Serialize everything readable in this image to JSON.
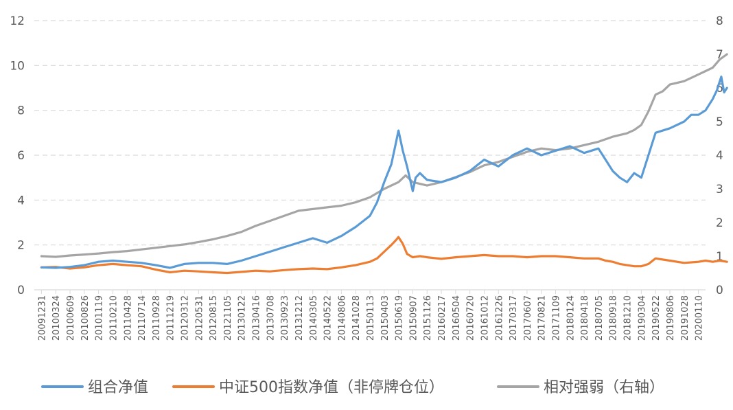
{
  "chart_data": {
    "type": "line",
    "title": "",
    "xlabel": "",
    "ylabel": "",
    "ylim_left": [
      0,
      12
    ],
    "yticks_left": [
      0,
      2,
      4,
      6,
      8,
      10,
      12
    ],
    "ylim_right": [
      0,
      8
    ],
    "yticks_right": [
      0,
      1,
      2,
      3,
      4,
      5,
      6,
      7,
      8
    ],
    "grid": "horizontal dashed",
    "legend": "bottom",
    "x_tick_labels": [
      "20091231",
      "20100324",
      "20100609",
      "20100826",
      "20101119",
      "20110210",
      "20110428",
      "20110714",
      "20110928",
      "20111219",
      "20120312",
      "20120531",
      "20120815",
      "20121105",
      "20130122",
      "20130416",
      "20130708",
      "20130923",
      "20131212",
      "20140305",
      "20140522",
      "20140806",
      "20141028",
      "20150113",
      "20150403",
      "20150619",
      "20150907",
      "20151126",
      "20160217",
      "20160504",
      "20160720",
      "20161012",
      "20161226",
      "20170317",
      "20170607",
      "20170821",
      "20171109",
      "20180124",
      "20180418",
      "20180705",
      "20180918",
      "20181210",
      "20190304",
      "20190522",
      "20190806",
      "20191028",
      "20200110"
    ],
    "series": [
      {
        "name": "组合净值",
        "axis": "left",
        "color": "#5B9BD5",
        "x": [
          0,
          1,
          2,
          3,
          4,
          5,
          6,
          7,
          8,
          9,
          10,
          11,
          12,
          13,
          14,
          15,
          16,
          17,
          18,
          19,
          20,
          21,
          22,
          23,
          23.5,
          24,
          24.5,
          24.8,
          25,
          25.3,
          25.6,
          26,
          26.2,
          26.5,
          27,
          28,
          29,
          30,
          31,
          32,
          33,
          34,
          35,
          36,
          37,
          38,
          39,
          39.5,
          40,
          40.5,
          41,
          41.5,
          42,
          42.5,
          43,
          44,
          45,
          45.5,
          46,
          46.5,
          47,
          47.3,
          47.6,
          47.8,
          48
        ],
        "values": [
          1.0,
          0.98,
          1.02,
          1.1,
          1.25,
          1.3,
          1.25,
          1.2,
          1.1,
          0.98,
          1.15,
          1.2,
          1.2,
          1.15,
          1.3,
          1.5,
          1.7,
          1.9,
          2.1,
          2.3,
          2.1,
          2.4,
          2.8,
          3.3,
          3.9,
          4.8,
          5.6,
          6.5,
          7.1,
          6.2,
          5.5,
          4.4,
          5.0,
          5.2,
          4.9,
          4.8,
          5.0,
          5.3,
          5.8,
          5.5,
          6.0,
          6.3,
          6.0,
          6.2,
          6.4,
          6.1,
          6.3,
          5.8,
          5.3,
          5.0,
          4.8,
          5.2,
          5.0,
          6.0,
          7.0,
          7.2,
          7.5,
          7.8,
          7.8,
          8.0,
          8.5,
          8.9,
          9.5,
          8.8,
          9.0
        ]
      },
      {
        "name": "中证500指数净值（非停牌仓位）",
        "axis": "left",
        "color": "#ED7D31",
        "x": [
          0,
          1,
          2,
          3,
          4,
          5,
          6,
          7,
          8,
          9,
          10,
          11,
          12,
          13,
          14,
          15,
          16,
          17,
          18,
          19,
          20,
          21,
          22,
          23,
          23.5,
          24,
          24.5,
          24.8,
          25,
          25.3,
          25.6,
          26,
          26.5,
          27,
          28,
          29,
          30,
          31,
          32,
          33,
          34,
          35,
          36,
          37,
          38,
          39,
          39.5,
          40,
          40.5,
          41,
          41.5,
          42,
          42.5,
          43,
          44,
          45,
          46,
          46.5,
          47,
          47.5,
          48
        ],
        "values": [
          1.0,
          1.02,
          0.95,
          1.0,
          1.1,
          1.15,
          1.1,
          1.05,
          0.9,
          0.78,
          0.85,
          0.82,
          0.78,
          0.75,
          0.8,
          0.85,
          0.82,
          0.88,
          0.92,
          0.95,
          0.92,
          1.0,
          1.1,
          1.25,
          1.4,
          1.7,
          2.0,
          2.2,
          2.35,
          2.05,
          1.6,
          1.45,
          1.5,
          1.45,
          1.38,
          1.45,
          1.5,
          1.55,
          1.5,
          1.5,
          1.45,
          1.5,
          1.5,
          1.45,
          1.4,
          1.4,
          1.3,
          1.25,
          1.15,
          1.1,
          1.05,
          1.05,
          1.15,
          1.4,
          1.3,
          1.2,
          1.25,
          1.3,
          1.25,
          1.3,
          1.25
        ]
      },
      {
        "name": "相对强弱（右轴）",
        "axis": "right",
        "color": "#A5A5A5",
        "x": [
          0,
          1,
          2,
          3,
          4,
          5,
          6,
          7,
          8,
          9,
          10,
          11,
          12,
          13,
          14,
          15,
          16,
          17,
          18,
          19,
          20,
          21,
          22,
          23,
          24,
          25,
          25.5,
          26,
          27,
          28,
          29,
          30,
          31,
          32,
          33,
          34,
          35,
          36,
          37,
          38,
          39,
          40,
          41,
          41.5,
          42,
          42.5,
          43,
          43.5,
          44,
          45,
          46,
          46.5,
          47,
          47.5,
          48
        ],
        "values": [
          1.0,
          0.98,
          1.02,
          1.05,
          1.08,
          1.12,
          1.15,
          1.2,
          1.25,
          1.3,
          1.35,
          1.42,
          1.5,
          1.6,
          1.72,
          1.9,
          2.05,
          2.2,
          2.35,
          2.4,
          2.45,
          2.5,
          2.6,
          2.75,
          3.0,
          3.2,
          3.4,
          3.2,
          3.1,
          3.2,
          3.35,
          3.5,
          3.7,
          3.8,
          3.95,
          4.1,
          4.2,
          4.15,
          4.2,
          4.3,
          4.4,
          4.55,
          4.65,
          4.75,
          4.9,
          5.3,
          5.8,
          5.9,
          6.1,
          6.2,
          6.4,
          6.5,
          6.6,
          6.85,
          7.0
        ]
      }
    ]
  }
}
